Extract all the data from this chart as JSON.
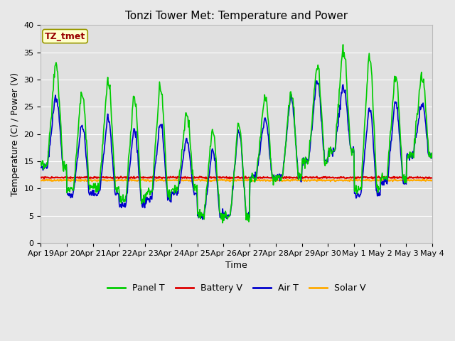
{
  "title": "Tonzi Tower Met: Temperature and Power",
  "xlabel": "Time",
  "ylabel": "Temperature (C) / Power (V)",
  "ylim": [
    0,
    40
  ],
  "yticks": [
    0,
    5,
    10,
    15,
    20,
    25,
    30,
    35,
    40
  ],
  "xtick_labels": [
    "Apr 19",
    "Apr 20",
    "Apr 21",
    "Apr 22",
    "Apr 23",
    "Apr 24",
    "Apr 25",
    "Apr 26",
    "Apr 27",
    "Apr 28",
    "Apr 29",
    "Apr 30",
    "May 1",
    "May 2",
    "May 3",
    "May 4"
  ],
  "legend_labels": [
    "Panel T",
    "Battery V",
    "Air T",
    "Solar V"
  ],
  "legend_colors": [
    "#00cc00",
    "#cc0000",
    "#0000cc",
    "#ffaa00"
  ],
  "annotation_text": "TZ_tmet",
  "annotation_color": "#990000",
  "annotation_bg": "#ffffcc",
  "annotation_edge": "#999900",
  "panel_color": "#00cc00",
  "battery_color": "#dd0000",
  "air_color": "#0000cc",
  "solar_color": "#ffaa00",
  "fig_bg": "#e8e8e8",
  "plot_bg": "#e0e0e0",
  "grid_color": "#ffffff",
  "title_fontsize": 11,
  "axis_fontsize": 9,
  "tick_fontsize": 8,
  "battery_v_mean": 12.0,
  "solar_v_mean": 11.5,
  "panel_peaks": [
    33,
    28,
    30,
    27,
    29,
    24,
    21,
    22,
    27,
    28,
    33,
    36,
    35,
    31,
    31
  ],
  "panel_troughs": [
    14,
    10,
    10,
    8,
    9,
    10,
    5,
    5,
    12,
    12,
    15,
    17,
    10,
    12,
    16
  ],
  "air_peaks": [
    27,
    22,
    23,
    21,
    22,
    19,
    17,
    21,
    23,
    27,
    30,
    29,
    25,
    26,
    26
  ],
  "air_troughs": [
    14,
    9,
    9,
    7,
    8,
    9,
    5,
    5,
    12,
    12,
    15,
    17,
    9,
    11,
    16
  ]
}
